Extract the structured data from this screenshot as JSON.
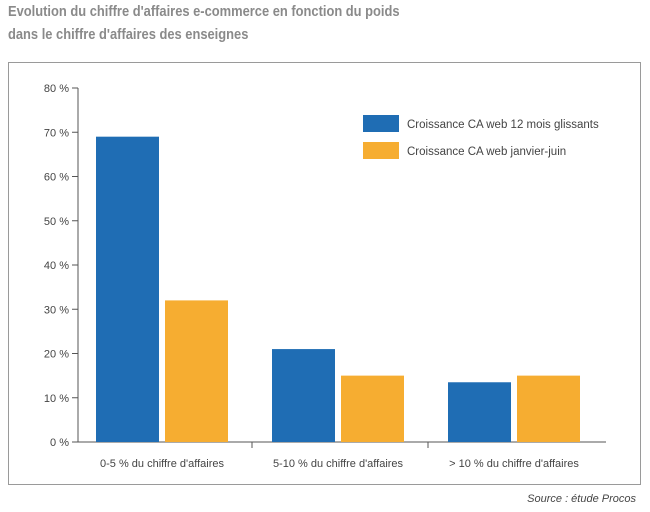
{
  "header": {
    "title_line1": "Evolution du chiffre d'affaires e-commerce en fonction du poids",
    "title_line2": "dans le chiffre d'affaires des enseignes"
  },
  "source": "Source : étude Procos",
  "colors": {
    "series1": "#1f6db4",
    "series2": "#f6ad31",
    "axis": "#555555",
    "text": "#444444"
  },
  "chart_data": {
    "type": "bar",
    "title": "Evolution du chiffre d'affaires e-commerce en fonction du poids dans le chiffre d'affaires des enseignes",
    "categories": [
      "0-5 % du chiffre d'affaires",
      "5-10 % du chiffre d'affaires",
      "> 10 % du chiffre d'affaires"
    ],
    "series": [
      {
        "name": "Croissance CA web 12 mois glissants",
        "values": [
          69,
          21,
          13.5
        ]
      },
      {
        "name": "Croissance CA web  janvier-juin",
        "values": [
          32,
          15,
          15
        ]
      }
    ],
    "yticks": [
      "0 %",
      "10 %",
      "20 %",
      "30 %",
      "40 %",
      "50 %",
      "60 %",
      "70 %",
      "80 %"
    ],
    "ylim": [
      0,
      80
    ],
    "legend_position": "top-right",
    "grid": false
  }
}
